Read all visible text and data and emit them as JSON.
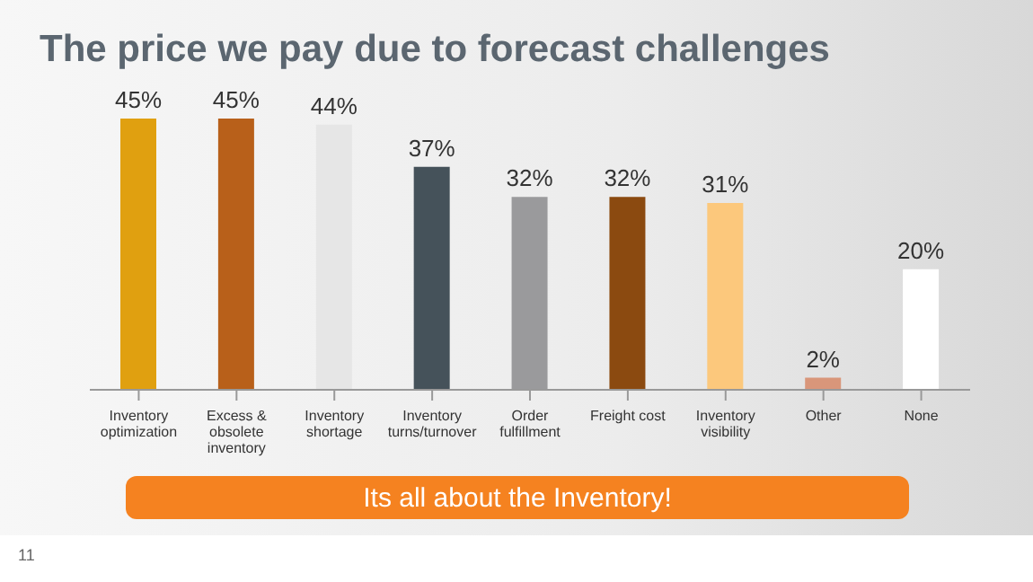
{
  "chart_data": {
    "type": "bar",
    "title": "The price we pay due to forecast challenges",
    "categories": [
      "Inventory optimization",
      "Excess & obsolete inventory",
      "Inventory shortage",
      "Inventory turns/turnover",
      "Order fulfillment",
      "Freight cost",
      "Inventory visibility",
      "Other",
      "None"
    ],
    "values": [
      45,
      45,
      44,
      37,
      32,
      32,
      31,
      2,
      20
    ],
    "value_labels": [
      "45%",
      "45%",
      "44%",
      "37%",
      "32%",
      "32%",
      "31%",
      "2%",
      "20%"
    ],
    "colors": [
      "#e0a010",
      "#b8601a",
      "#e6e6e6",
      "#45525a",
      "#9a9a9c",
      "#8b4a10",
      "#fcc87c",
      "#d9967a",
      "#ffffff"
    ],
    "annotations": [
      "Its all about the Inventory!",
      "11"
    ]
  }
}
